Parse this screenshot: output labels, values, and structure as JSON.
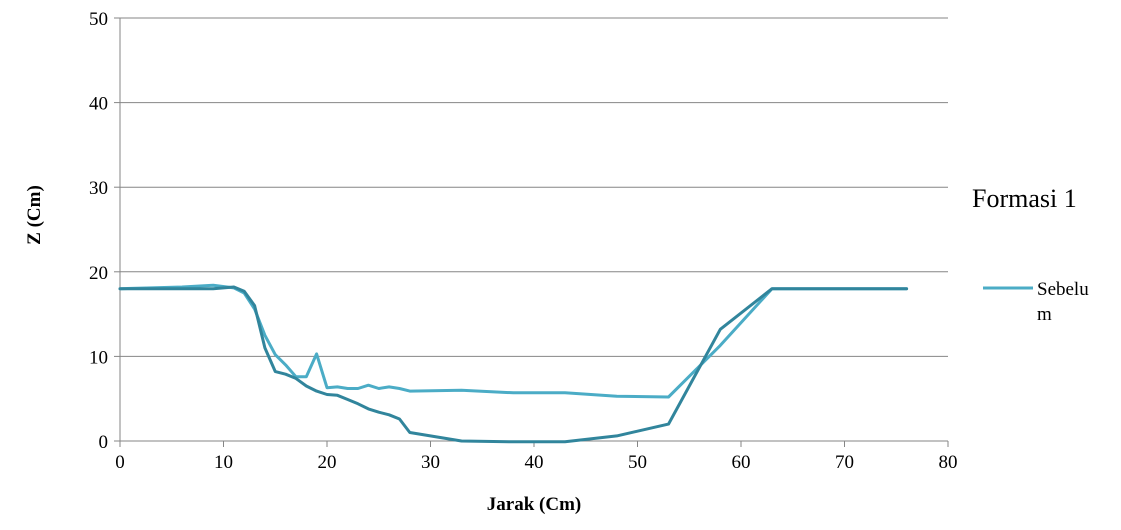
{
  "chart_data": {
    "type": "line",
    "title": "",
    "xlabel": "Jarak (Cm)",
    "ylabel": "Z (Cm)",
    "xlim": [
      0,
      80
    ],
    "ylim": [
      0,
      50
    ],
    "x_ticks": [
      0,
      10,
      20,
      30,
      40,
      50,
      60,
      70,
      80
    ],
    "y_ticks": [
      0,
      10,
      20,
      30,
      40,
      50
    ],
    "grid": "horizontal",
    "legend": {
      "title": "Formasi 1",
      "placement": "right",
      "entries": [
        "Sebelu\nm"
      ]
    },
    "series": [
      {
        "name": "Sebelu\nm",
        "color": "#4bacc6",
        "x": [
          0,
          3,
          6,
          9,
          11,
          12,
          13,
          14,
          15,
          16,
          17,
          18,
          19,
          20,
          21,
          22,
          23,
          24,
          25,
          26,
          27,
          28,
          33,
          38,
          43,
          48,
          53,
          58,
          63,
          76
        ],
        "y": [
          18,
          18.1,
          18.2,
          18.4,
          18.1,
          17.5,
          15.6,
          12.5,
          10.2,
          9,
          7.6,
          7.6,
          10.3,
          6.3,
          6.4,
          6.2,
          6.2,
          6.6,
          6.2,
          6.4,
          6.2,
          5.9,
          6,
          5.7,
          5.7,
          5.3,
          5.2,
          11.3,
          18,
          18
        ]
      },
      {
        "color": "#31859c",
        "x": [
          0,
          3,
          6,
          9,
          11,
          12,
          13,
          14,
          15,
          16,
          17,
          18,
          19,
          20,
          21,
          22,
          23,
          24,
          25,
          26,
          27,
          28,
          33,
          38,
          43,
          48,
          53,
          58,
          63,
          76
        ],
        "y": [
          18,
          18,
          18,
          18,
          18.2,
          17.7,
          16,
          11,
          8.2,
          7.9,
          7.4,
          6.5,
          5.9,
          5.5,
          5.4,
          4.9,
          4.4,
          3.8,
          3.4,
          3.1,
          2.6,
          1,
          0,
          -0.1,
          -0.1,
          0.6,
          2,
          13.2,
          18,
          18
        ]
      }
    ]
  }
}
